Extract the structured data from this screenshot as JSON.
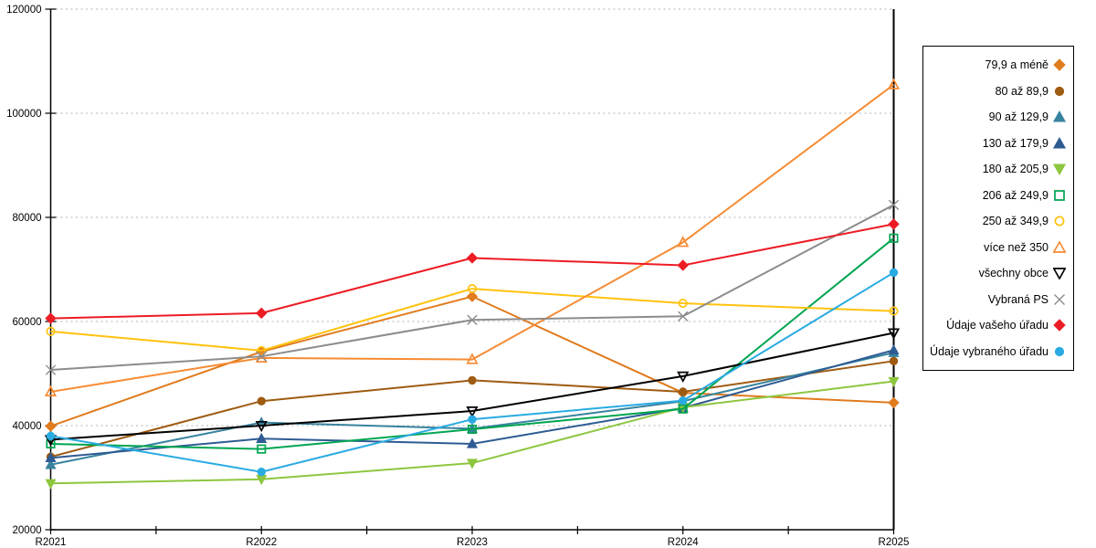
{
  "chart_data": {
    "type": "line",
    "categories": [
      "R2021",
      "R2022",
      "R2023",
      "R2024",
      "R2025"
    ],
    "y_tick_labels": [
      "20000",
      "40000",
      "60000",
      "80000",
      "100000",
      "120000"
    ],
    "ylim": [
      20000,
      120000
    ],
    "ytick_step": 20000,
    "grid": "horizontal-dotted",
    "legend_position": "right",
    "series": [
      {
        "name": "79,9 a méně",
        "color": "#E07B1E",
        "marker": "diamond",
        "fill": "filled",
        "values": [
          39900,
          54200,
          64800,
          46300,
          44400
        ]
      },
      {
        "name": "80 až 89,9",
        "color": "#9E5B12",
        "marker": "circle",
        "fill": "filled",
        "values": [
          34000,
          44700,
          48700,
          46500,
          52400
        ]
      },
      {
        "name": "90 až 129,9",
        "color": "#37839E",
        "marker": "triangle-up",
        "fill": "filled",
        "values": [
          32500,
          40600,
          39400,
          44700,
          54000
        ]
      },
      {
        "name": "130 až 179,9",
        "color": "#2E5B93",
        "marker": "triangle-up",
        "fill": "filled",
        "values": [
          33800,
          37500,
          36500,
          43400,
          54500
        ]
      },
      {
        "name": "180 až 205,9",
        "color": "#8DC63F",
        "marker": "triangle-down",
        "fill": "filled",
        "values": [
          28900,
          29700,
          32800,
          43500,
          48500
        ]
      },
      {
        "name": "206 až 249,9",
        "color": "#00A551",
        "marker": "square",
        "fill": "open",
        "values": [
          36500,
          35500,
          39300,
          43200,
          76000
        ]
      },
      {
        "name": "250 až 349,9",
        "color": "#FFC20E",
        "marker": "circle",
        "fill": "open",
        "values": [
          58100,
          54400,
          66300,
          63500,
          62000
        ]
      },
      {
        "name": "více než 350",
        "color": "#F68B33",
        "marker": "triangle-up",
        "fill": "open",
        "values": [
          46500,
          53000,
          52700,
          75200,
          105500
        ]
      },
      {
        "name": "všechny obce",
        "color": "#000000",
        "marker": "triangle-down",
        "fill": "open",
        "values": [
          37300,
          40000,
          42800,
          49500,
          57800
        ]
      },
      {
        "name": "Vybraná PS",
        "color": "#8C8C8C",
        "marker": "x",
        "fill": "open",
        "values": [
          50700,
          53300,
          60300,
          61000,
          82400
        ]
      },
      {
        "name": "Údaje vašeho úřadu",
        "color": "#EC1C24",
        "marker": "diamond",
        "fill": "filled",
        "values": [
          60600,
          61600,
          72200,
          70800,
          78700
        ]
      },
      {
        "name": "Údaje vybraného úřadu",
        "color": "#29ABE2",
        "marker": "circle",
        "fill": "filled",
        "values": [
          38000,
          31100,
          41200,
          44800,
          69400
        ]
      }
    ],
    "colors": {
      "grid": "#B3B3B3",
      "axis": "#000000"
    }
  }
}
